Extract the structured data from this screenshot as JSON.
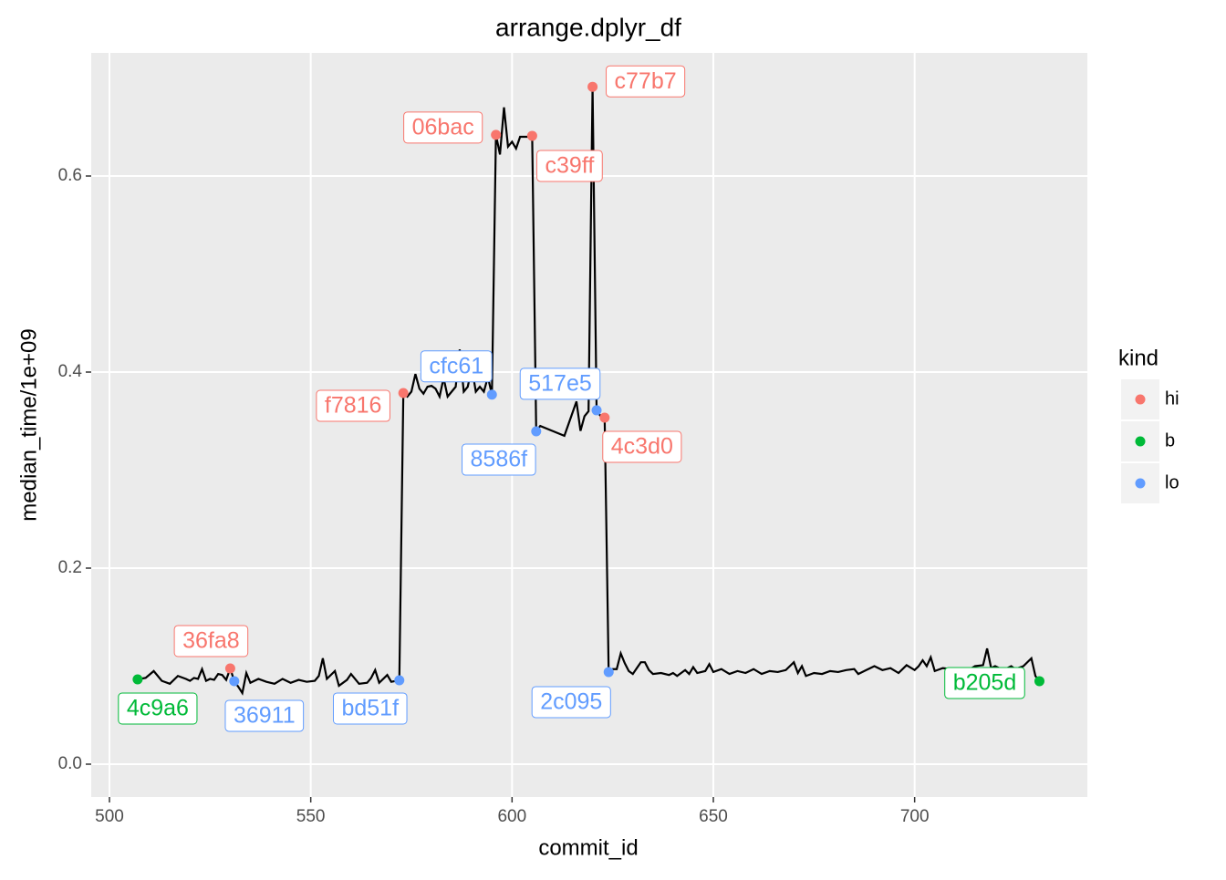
{
  "chart_data": {
    "type": "line",
    "title": "arrange.dplyr_df",
    "x_label": "commit_id",
    "y_label": "median_time/1e+09",
    "xlim": [
      495.47,
      742.9
    ],
    "ylim": [
      -0.0335,
      0.7256
    ],
    "xticks": [
      500,
      550,
      600,
      650,
      700
    ],
    "yticks": [
      {
        "value": 0,
        "label": "0.0"
      },
      0.2,
      0.4,
      0.6
    ],
    "grid": true,
    "series": [
      {
        "color": "#000000",
        "x": [
          507,
          509,
          511,
          513,
          515,
          517,
          519,
          520,
          521,
          522,
          523,
          524,
          525,
          526,
          527,
          528,
          529,
          530,
          531,
          532,
          533,
          534,
          535,
          537,
          539,
          541,
          543,
          545,
          547,
          549,
          551,
          552,
          553,
          554,
          556,
          557,
          559,
          560,
          562,
          564,
          565,
          566,
          567,
          569,
          570,
          572,
          573,
          574,
          575,
          576,
          577,
          578,
          579,
          580,
          581,
          582,
          583,
          584,
          585,
          586,
          587,
          588,
          589,
          590,
          591,
          592,
          593,
          594,
          595,
          596,
          597,
          598,
          599,
          600,
          601,
          602,
          603,
          604,
          605,
          606,
          607,
          610,
          613,
          616,
          617,
          618,
          619,
          620,
          621,
          622,
          623,
          624,
          625,
          626,
          627,
          628,
          629,
          630,
          631,
          632,
          633,
          634,
          635,
          637,
          639,
          640,
          641,
          643,
          644,
          645,
          646,
          648,
          649,
          650,
          652,
          654,
          656,
          658,
          660,
          662,
          664,
          666,
          668,
          670,
          671,
          672,
          673,
          675,
          677,
          679,
          681,
          683,
          685,
          686,
          688,
          690,
          692,
          694,
          696,
          698,
          700,
          701,
          702,
          703,
          704,
          705,
          707,
          709,
          711,
          713,
          715,
          717,
          718,
          719,
          720,
          722,
          724,
          725,
          727,
          729,
          730,
          731
        ],
        "values": [
          0.0865,
          0.088,
          0.095,
          0.085,
          0.082,
          0.09,
          0.087,
          0.085,
          0.088,
          0.087,
          0.097,
          0.085,
          0.087,
          0.086,
          0.092,
          0.091,
          0.086,
          0.0977,
          0.0847,
          0.079,
          0.0726,
          0.093,
          0.083,
          0.087,
          0.084,
          0.082,
          0.087,
          0.083,
          0.086,
          0.084,
          0.085,
          0.09,
          0.108,
          0.087,
          0.095,
          0.08,
          0.086,
          0.092,
          0.082,
          0.083,
          0.088,
          0.096,
          0.083,
          0.091,
          0.084,
          0.0856,
          0.3786,
          0.375,
          0.38,
          0.398,
          0.383,
          0.378,
          0.385,
          0.386,
          0.383,
          0.375,
          0.394,
          0.375,
          0.38,
          0.385,
          0.423,
          0.38,
          0.385,
          0.405,
          0.38,
          0.385,
          0.38,
          0.395,
          0.377,
          0.642,
          0.622,
          0.67,
          0.63,
          0.635,
          0.628,
          0.64,
          0.64,
          0.64,
          0.641,
          0.3395,
          0.345,
          0.34,
          0.335,
          0.37,
          0.34,
          0.355,
          0.36,
          0.691,
          0.361,
          0.355,
          0.3535,
          0.094,
          0.097,
          0.097,
          0.113,
          0.103,
          0.095,
          0.092,
          0.098,
          0.104,
          0.104,
          0.096,
          0.092,
          0.093,
          0.091,
          0.093,
          0.09,
          0.096,
          0.092,
          0.099,
          0.093,
          0.095,
          0.102,
          0.094,
          0.097,
          0.092,
          0.095,
          0.093,
          0.097,
          0.092,
          0.095,
          0.094,
          0.096,
          0.104,
          0.093,
          0.1,
          0.09,
          0.093,
          0.092,
          0.095,
          0.094,
          0.096,
          0.097,
          0.092,
          0.096,
          0.1,
          0.096,
          0.098,
          0.093,
          0.101,
          0.096,
          0.1,
          0.106,
          0.1,
          0.109,
          0.095,
          0.098,
          0.097,
          0.097,
          0.095,
          0.1,
          0.101,
          0.118,
          0.098,
          0.1,
          0.096,
          0.1,
          0.097,
          0.1,
          0.108,
          0.09,
          0.0847
        ]
      }
    ],
    "legend_title": "kind",
    "legend": [
      {
        "name": "hi",
        "color": "#F8766D"
      },
      {
        "name": "b",
        "color": "#00BA38"
      },
      {
        "name": "lo",
        "color": "#619CFF"
      }
    ],
    "points": [
      {
        "x": 507,
        "y": 0.0865,
        "label": "4c9a6",
        "kind": "b"
      },
      {
        "x": 530,
        "y": 0.0977,
        "label": "36fa8",
        "kind": "hi"
      },
      {
        "x": 531,
        "y": 0.0847,
        "label": "36911",
        "kind": "lo"
      },
      {
        "x": 572,
        "y": 0.0856,
        "label": "bd51f",
        "kind": "lo"
      },
      {
        "x": 573,
        "y": 0.3786,
        "label": "f7816",
        "kind": "hi"
      },
      {
        "x": 595,
        "y": 0.377,
        "label": "cfc61",
        "kind": "lo"
      },
      {
        "x": 596,
        "y": 0.642,
        "label": "06bac",
        "kind": "hi"
      },
      {
        "x": 605,
        "y": 0.641,
        "label": "c39ff",
        "kind": "hi"
      },
      {
        "x": 606,
        "y": 0.3395,
        "label": "8586f",
        "kind": "lo"
      },
      {
        "x": 620,
        "y": 0.691,
        "label": "c77b7",
        "kind": "hi"
      },
      {
        "x": 621,
        "y": 0.361,
        "label": "517e5",
        "kind": "lo"
      },
      {
        "x": 623,
        "y": 0.3535,
        "label": "4c3d0",
        "kind": "hi"
      },
      {
        "x": 624,
        "y": 0.094,
        "label": "2c095",
        "kind": "lo"
      },
      {
        "x": 731,
        "y": 0.0847,
        "label": "b205d",
        "kind": "b"
      }
    ]
  }
}
